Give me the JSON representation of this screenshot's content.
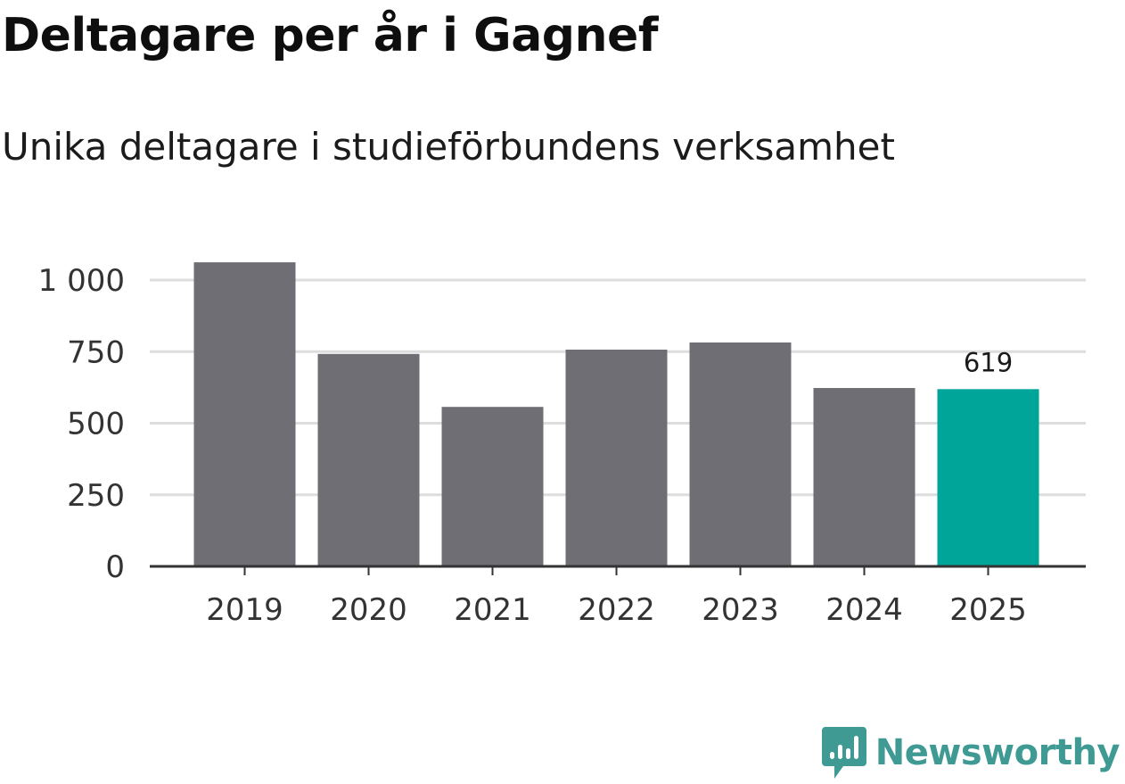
{
  "header": {
    "title": "Deltagare per år i Gagnef",
    "subtitle": "Unika deltagare i studieförbundens verksamhet"
  },
  "brand": {
    "name": "Newsworthy",
    "color": "#3f9a94"
  },
  "colors": {
    "bar": "#6f6e74",
    "highlight": "#00a59a",
    "grid": "#dddddd",
    "axis": "#333333"
  },
  "chart_data": {
    "type": "bar",
    "title": "Deltagare per år i Gagnef",
    "subtitle": "Unika deltagare i studieförbundens verksamhet",
    "xlabel": "",
    "ylabel": "",
    "categories": [
      "2019",
      "2020",
      "2021",
      "2022",
      "2023",
      "2024",
      "2025"
    ],
    "values": [
      1062,
      742,
      557,
      757,
      782,
      623,
      619
    ],
    "highlight_index": 6,
    "data_labels": [
      {
        "index": 6,
        "text": "619"
      }
    ],
    "ylim": [
      0,
      1062
    ],
    "yticks": [
      0,
      250,
      500,
      750,
      1000
    ],
    "ytick_labels": [
      "0",
      "250",
      "500",
      "750",
      "1 000"
    ],
    "grid": true,
    "legend": "none"
  }
}
